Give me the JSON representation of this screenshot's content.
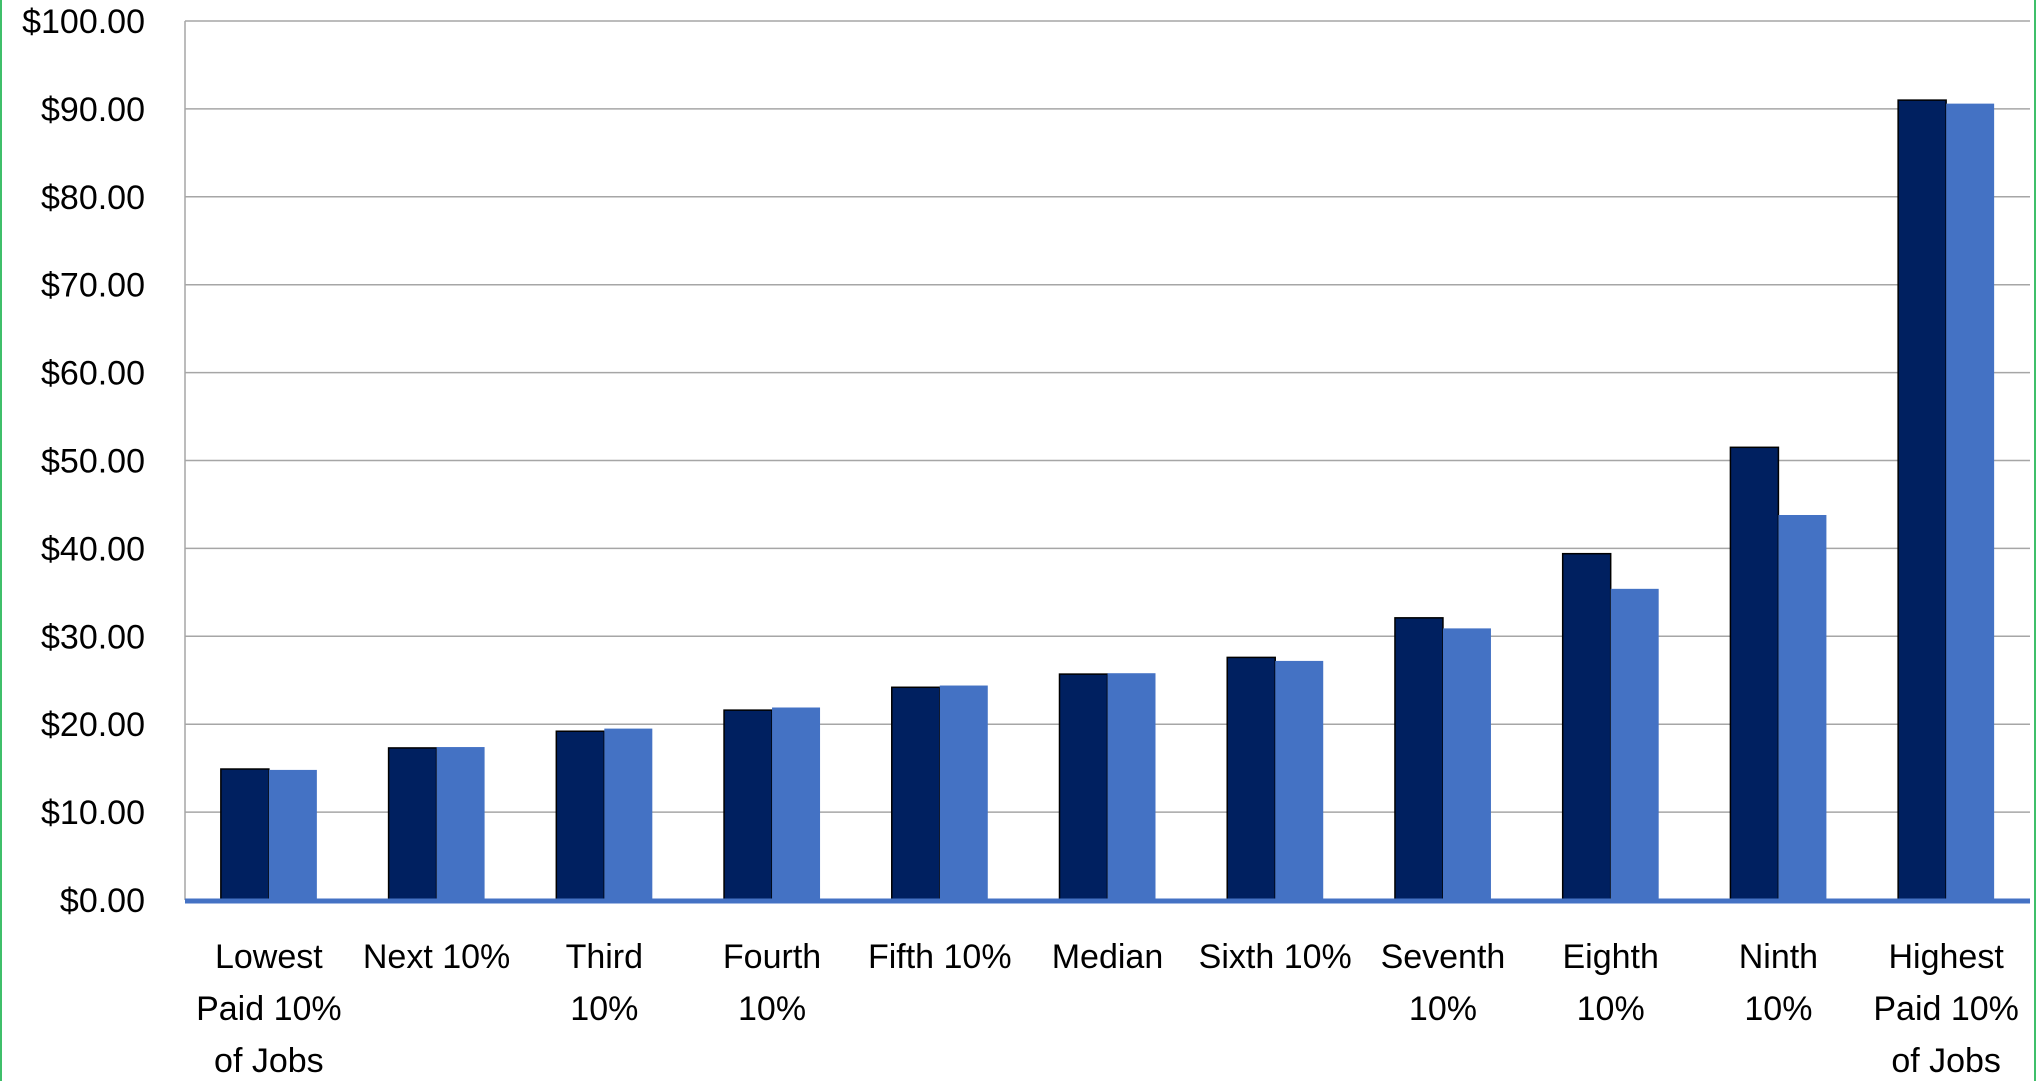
{
  "chart_data": {
    "type": "bar",
    "title": "",
    "xlabel": "",
    "ylabel": "",
    "ylim": [
      0,
      100
    ],
    "grid": true,
    "legend": "none",
    "y_ticks": [
      "$0.00",
      "$10.00",
      "$20.00",
      "$30.00",
      "$40.00",
      "$50.00",
      "$60.00",
      "$70.00",
      "$80.00",
      "$90.00",
      "$100.00"
    ],
    "categories": [
      [
        "Lowest",
        "Paid 10%",
        "of Jobs"
      ],
      [
        "Next 10%"
      ],
      [
        "Third",
        "10%"
      ],
      [
        "Fourth",
        "10%"
      ],
      [
        "Fifth 10%"
      ],
      [
        "Median"
      ],
      [
        "Sixth 10%"
      ],
      [
        "Seventh",
        "10%"
      ],
      [
        "Eighth",
        "10%"
      ],
      [
        "Ninth",
        "10%"
      ],
      [
        "Highest",
        "Paid 10%",
        "of Jobs"
      ]
    ],
    "series": [
      {
        "color": "#002060",
        "values": [
          14.9,
          17.3,
          19.2,
          21.6,
          24.2,
          25.7,
          27.6,
          32.1,
          39.4,
          51.5,
          91.0
        ]
      },
      {
        "color": "#4472c4",
        "values": [
          14.8,
          17.4,
          19.5,
          21.9,
          24.4,
          25.8,
          27.2,
          30.9,
          35.4,
          43.8,
          90.6
        ]
      }
    ],
    "colors": {
      "grid": "#a6a6a6",
      "axis": "#4472c4",
      "frame": "#3fbf6a"
    }
  }
}
